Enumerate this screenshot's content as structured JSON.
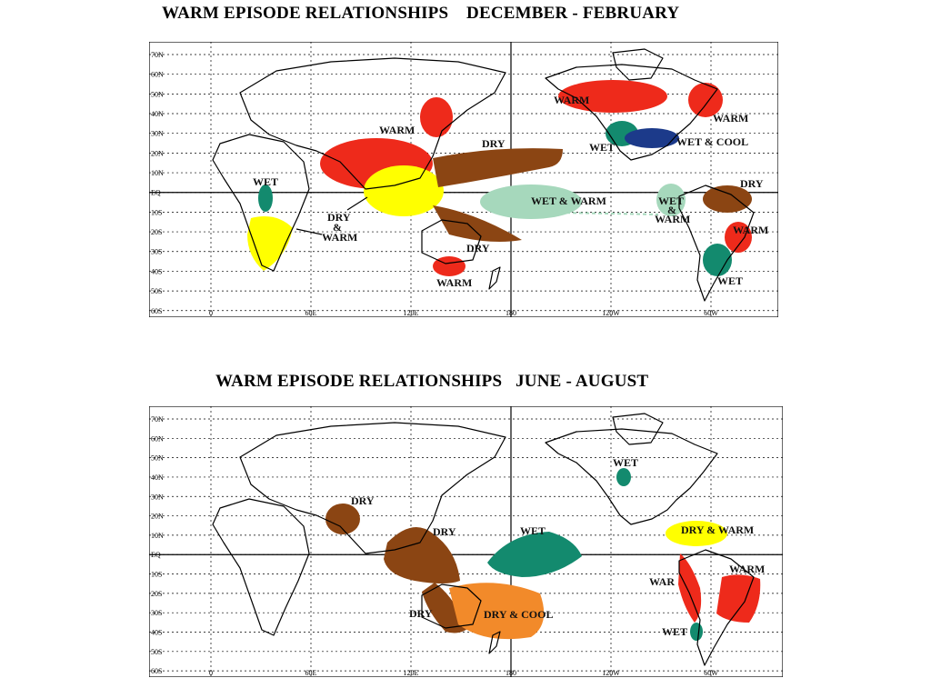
{
  "titles": {
    "top": "WARM EPISODE RELATIONSHIPS    DECEMBER - FEBRUARY",
    "bottom": "WARM EPISODE RELATIONSHIPS   JUNE - AUGUST"
  },
  "axes": {
    "lat_ticks": [
      "70N",
      "60N",
      "50N",
      "40N",
      "30N",
      "20N",
      "10N",
      "EQ",
      "10S",
      "20S",
      "30S",
      "40S",
      "50S",
      "60S"
    ],
    "lon_ticks": [
      "0",
      "60E",
      "120E",
      "180",
      "120W",
      "60W"
    ]
  },
  "colors": {
    "warm": "#ee2a1b",
    "dry": "#8b4513",
    "wet": "#138a6e",
    "wet_light": "#a6d8bc",
    "dry_warm": "#ffff00",
    "wet_cool": "#1c3a8a",
    "dry_cool": "#f28a2a"
  },
  "map_top": {
    "labels": {
      "warm_west_pacific": "WARM",
      "warm_north_pacific": "WARM",
      "warm_canada": "WARM",
      "dry_pacific": "DRY",
      "wet_usa": "WET",
      "wet_cool_usa": "WET & COOL",
      "wet_africa": "WET",
      "dry_warm_africa_a": "DRY",
      "dry_warm_africa_b": "&",
      "dry_warm_africa_c": "WARM",
      "wet_warm_pacific": "WET & WARM",
      "wet_south_america_a": "WET",
      "wet_south_america_b": "&",
      "wet_south_america_c": "WARM",
      "dry_south_america": "DRY",
      "warm_brazil": "WARM",
      "dry_australia": "DRY",
      "warm_australia": "WARM",
      "wet_argentina": "WET"
    }
  },
  "map_bottom": {
    "labels": {
      "wet_north_america": "WET",
      "dry_india": "DRY",
      "dry_indonesia": "DRY",
      "wet_pacific": "WET",
      "dry_warm_central_america": "DRY & WARM",
      "warm_brazil": "WARM",
      "warm_peru": "WAR",
      "dry_australia": "DRY",
      "dry_cool_pacific": "DRY & COOL",
      "wet_chile": "WET"
    }
  }
}
